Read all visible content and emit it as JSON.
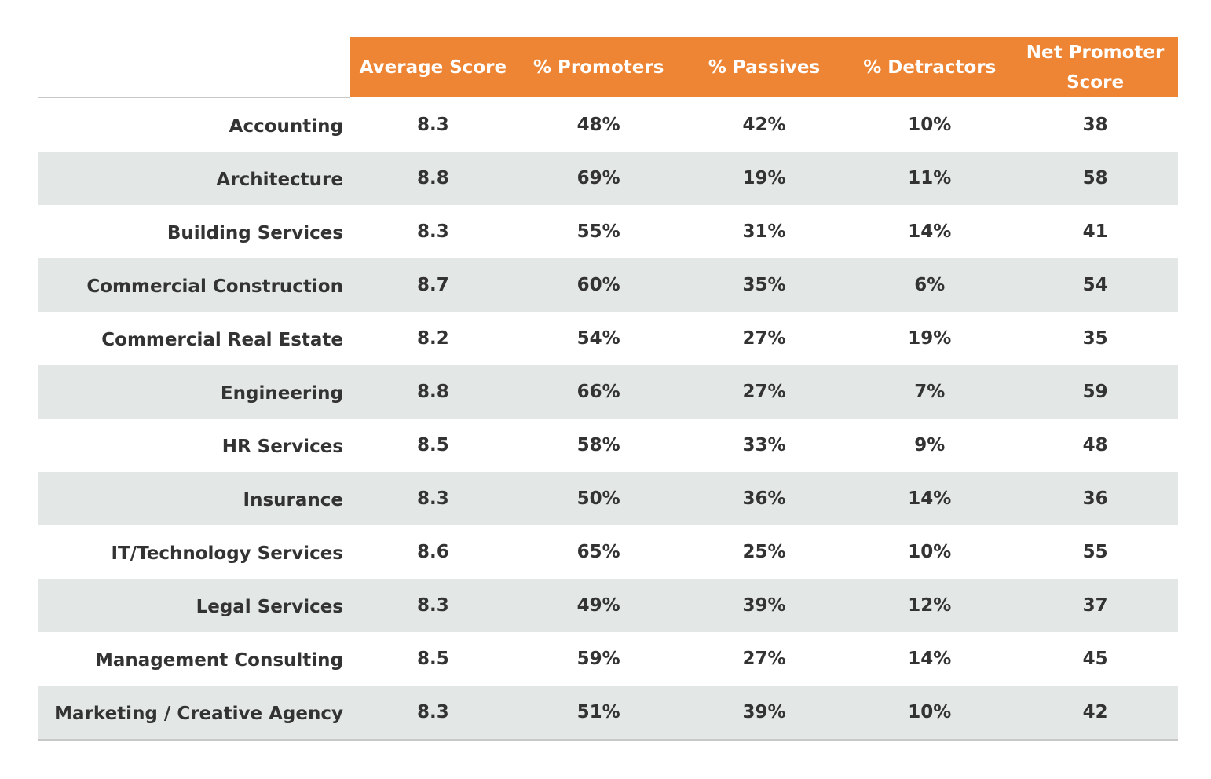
{
  "chart_data": {
    "type": "table",
    "columns": [
      "Average Score",
      "% Promoters",
      "% Passives",
      "% Detractors",
      "Net Promoter Score"
    ],
    "rows": [
      {
        "label": "Accounting",
        "values": [
          "8.3",
          "48%",
          "42%",
          "10%",
          "38"
        ]
      },
      {
        "label": "Architecture",
        "values": [
          "8.8",
          "69%",
          "19%",
          "11%",
          "58"
        ]
      },
      {
        "label": "Building Services",
        "values": [
          "8.3",
          "55%",
          "31%",
          "14%",
          "41"
        ]
      },
      {
        "label": "Commercial Construction",
        "values": [
          "8.7",
          "60%",
          "35%",
          "6%",
          "54"
        ]
      },
      {
        "label": "Commercial Real Estate",
        "values": [
          "8.2",
          "54%",
          "27%",
          "19%",
          "35"
        ]
      },
      {
        "label": "Engineering",
        "values": [
          "8.8",
          "66%",
          "27%",
          "7%",
          "59"
        ]
      },
      {
        "label": "HR Services",
        "values": [
          "8.5",
          "58%",
          "33%",
          "9%",
          "48"
        ]
      },
      {
        "label": "Insurance",
        "values": [
          "8.3",
          "50%",
          "36%",
          "14%",
          "36"
        ]
      },
      {
        "label": "IT/Technology Services",
        "values": [
          "8.6",
          "65%",
          "25%",
          "10%",
          "55"
        ]
      },
      {
        "label": "Legal Services",
        "values": [
          "8.3",
          "49%",
          "39%",
          "12%",
          "37"
        ]
      },
      {
        "label": "Management Consulting",
        "values": [
          "8.5",
          "59%",
          "27%",
          "14%",
          "45"
        ]
      },
      {
        "label": "Marketing / Creative Agency",
        "values": [
          "8.3",
          "51%",
          "39%",
          "10%",
          "42"
        ]
      }
    ]
  },
  "colors": {
    "header_background": "#ed8535",
    "header_text": "#ffffff",
    "shaded_row": "#e3e8e6",
    "text": "#333333"
  }
}
